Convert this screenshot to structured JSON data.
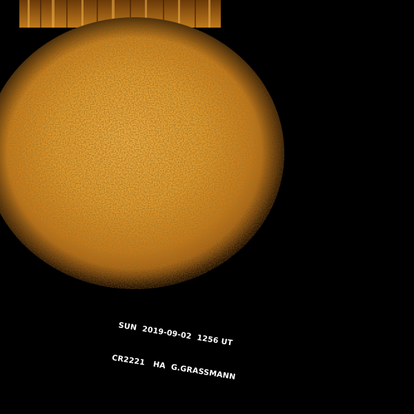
{
  "image": {
    "subject": "Sun",
    "colors": {
      "background": "#000000",
      "disk_center": "#f0a83a",
      "disk_mid": "#d88a22",
      "disk_edge": "#a85a10",
      "limb": "#5a2a04",
      "caption_text": "#ffffff"
    }
  },
  "caption": {
    "line1": "SUN  2019-09-02  1256 UT",
    "line2": "CR2221   HA  G.GRASSMANN"
  }
}
